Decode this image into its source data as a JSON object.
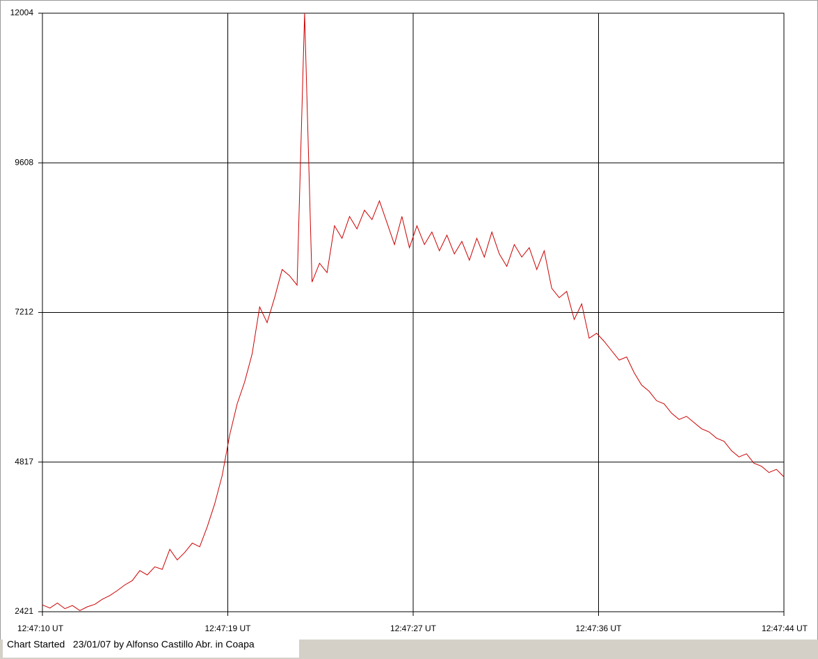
{
  "chart_data": {
    "type": "line",
    "x_labels": [
      "12:47:10 UT",
      "12:47:19 UT",
      "12:47:27 UT",
      "12:47:36 UT",
      "12:47:44 UT"
    ],
    "series": [
      {
        "color": "#cc0000",
        "values": [
          2530,
          2480,
          2560,
          2470,
          2520,
          2440,
          2500,
          2540,
          2620,
          2680,
          2760,
          2850,
          2920,
          3080,
          3010,
          3140,
          3100,
          3420,
          3250,
          3370,
          3520,
          3460,
          3780,
          4150,
          4600,
          5250,
          5750,
          6100,
          6550,
          7300,
          7050,
          7450,
          7900,
          7800,
          7650,
          12004,
          7700,
          8000,
          7850,
          8600,
          8400,
          8750,
          8550,
          8850,
          8700,
          9000,
          8650,
          8300,
          8750,
          8250,
          8600,
          8300,
          8500,
          8200,
          8450,
          8150,
          8350,
          8050,
          8400,
          8100,
          8500,
          8150,
          7950,
          8300,
          8100,
          8250,
          7900,
          8200,
          7600,
          7450,
          7550,
          7100,
          7350,
          6800,
          6880,
          6750,
          6600,
          6450,
          6500,
          6250,
          6050,
          5950,
          5800,
          5750,
          5600,
          5500,
          5550,
          5450,
          5350,
          5300,
          5200,
          5150,
          5000,
          4900,
          4950,
          4800,
          4750,
          4650,
          4700,
          4580
        ]
      }
    ],
    "ylim": [
      2421,
      12004
    ],
    "yticks": [
      2421,
      4817,
      7212,
      9608,
      12004
    ],
    "grid": true
  },
  "footer": "Chart Started   23/01/07 by Alfonso Castillo Abr. in Coapa"
}
